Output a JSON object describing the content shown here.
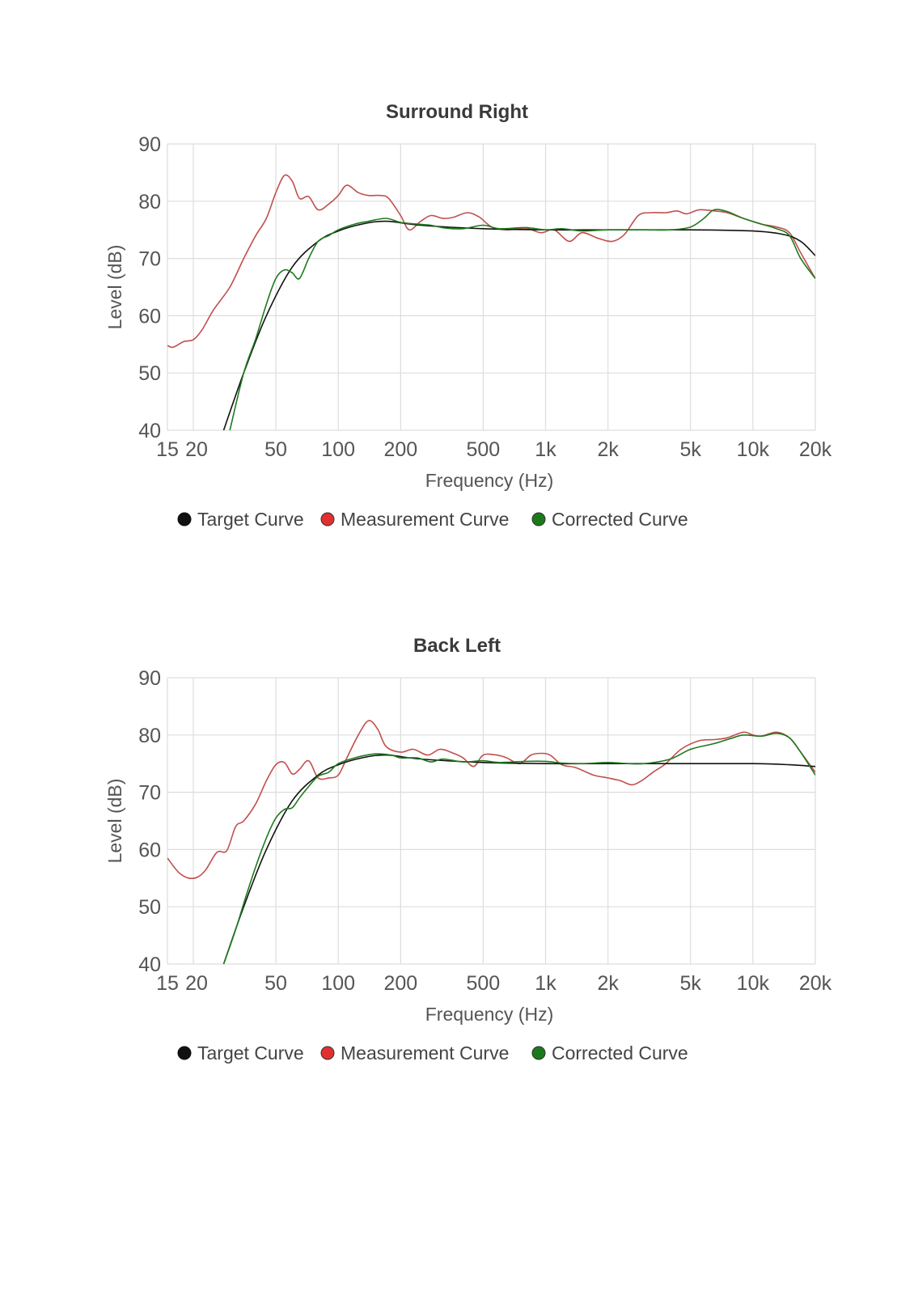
{
  "colors": {
    "target": "#111111",
    "measurement": "#e03030",
    "measurement_line": "#c0504d",
    "corrected": "#1a7a1a",
    "corrected_line": "#1e7a1e",
    "grid": "#dddddd"
  },
  "legend": [
    {
      "key": "target",
      "label": "Target Curve"
    },
    {
      "key": "measurement",
      "label": "Measurement Curve"
    },
    {
      "key": "corrected",
      "label": "Corrected Curve"
    }
  ],
  "chart_data": [
    {
      "type": "line",
      "title": "Surround Right",
      "xlabel": "Frequency (Hz)",
      "ylabel": "Level (dB)",
      "xscale": "log",
      "xlim": [
        15,
        20000
      ],
      "ylim": [
        40,
        90
      ],
      "grid": true,
      "legend_position": "bottom",
      "yticks": [
        {
          "v": 40,
          "label": "40"
        },
        {
          "v": 50,
          "label": "50"
        },
        {
          "v": 60,
          "label": "60"
        },
        {
          "v": 70,
          "label": "70"
        },
        {
          "v": 80,
          "label": "80"
        },
        {
          "v": 90,
          "label": "90"
        }
      ],
      "xticks": [
        {
          "v": 15,
          "label": "15"
        },
        {
          "v": 20,
          "label": "20"
        },
        {
          "v": 50,
          "label": "50"
        },
        {
          "v": 100,
          "label": "100"
        },
        {
          "v": 200,
          "label": "200"
        },
        {
          "v": 500,
          "label": "500"
        },
        {
          "v": 1000,
          "label": "1k"
        },
        {
          "v": 2000,
          "label": "2k"
        },
        {
          "v": 5000,
          "label": "5k"
        },
        {
          "v": 10000,
          "label": "10k"
        },
        {
          "v": 20000,
          "label": "20k"
        }
      ],
      "series": [
        {
          "name": "Target Curve",
          "key": "target",
          "points": [
            [
              28,
              40
            ],
            [
              35,
              50
            ],
            [
              45,
              60
            ],
            [
              60,
              68.5
            ],
            [
              80,
              73
            ],
            [
              100,
              74.8
            ],
            [
              130,
              76
            ],
            [
              170,
              76.5
            ],
            [
              250,
              75.8
            ],
            [
              500,
              75.2
            ],
            [
              1000,
              75
            ],
            [
              2000,
              75
            ],
            [
              5000,
              75
            ],
            [
              10000,
              74.8
            ],
            [
              14000,
              74.2
            ],
            [
              17000,
              73
            ],
            [
              20000,
              70.5
            ]
          ]
        },
        {
          "name": "Measurement Curve",
          "key": "measurement",
          "points": [
            [
              15,
              54.8
            ],
            [
              16,
              54.5
            ],
            [
              18,
              55.5
            ],
            [
              20,
              55.8
            ],
            [
              22,
              57.5
            ],
            [
              25,
              61
            ],
            [
              30,
              65
            ],
            [
              35,
              70
            ],
            [
              40,
              74
            ],
            [
              45,
              77
            ],
            [
              50,
              81.5
            ],
            [
              55,
              84.5
            ],
            [
              60,
              83.5
            ],
            [
              65,
              80.5
            ],
            [
              72,
              80.8
            ],
            [
              80,
              78.5
            ],
            [
              90,
              79.5
            ],
            [
              100,
              81
            ],
            [
              110,
              82.8
            ],
            [
              125,
              81.5
            ],
            [
              140,
              81
            ],
            [
              160,
              81
            ],
            [
              175,
              80.5
            ],
            [
              200,
              77.5
            ],
            [
              220,
              75
            ],
            [
              250,
              76.5
            ],
            [
              280,
              77.5
            ],
            [
              320,
              77
            ],
            [
              360,
              77.2
            ],
            [
              420,
              78
            ],
            [
              480,
              77.2
            ],
            [
              550,
              75.5
            ],
            [
              650,
              75
            ],
            [
              800,
              75.3
            ],
            [
              950,
              74.5
            ],
            [
              1100,
              75
            ],
            [
              1300,
              73
            ],
            [
              1500,
              74.5
            ],
            [
              1800,
              73.5
            ],
            [
              2100,
              73
            ],
            [
              2400,
              74.2
            ],
            [
              2800,
              77.5
            ],
            [
              3200,
              78
            ],
            [
              3800,
              78
            ],
            [
              4300,
              78.3
            ],
            [
              4800,
              77.8
            ],
            [
              5500,
              78.5
            ],
            [
              6500,
              78.3
            ],
            [
              7500,
              78
            ],
            [
              9000,
              77
            ],
            [
              11000,
              76
            ],
            [
              13000,
              75.5
            ],
            [
              15000,
              74.5
            ],
            [
              17000,
              71
            ],
            [
              20000,
              66.5
            ]
          ]
        },
        {
          "name": "Corrected Curve",
          "key": "corrected",
          "points": [
            [
              30,
              40
            ],
            [
              35,
              50
            ],
            [
              40,
              56
            ],
            [
              45,
              62
            ],
            [
              50,
              66.5
            ],
            [
              55,
              68
            ],
            [
              60,
              67.5
            ],
            [
              65,
              66.5
            ],
            [
              72,
              70
            ],
            [
              80,
              73
            ],
            [
              90,
              74
            ],
            [
              100,
              75
            ],
            [
              120,
              76
            ],
            [
              140,
              76.5
            ],
            [
              170,
              77
            ],
            [
              200,
              76.3
            ],
            [
              240,
              76
            ],
            [
              280,
              75.8
            ],
            [
              330,
              75.3
            ],
            [
              400,
              75.2
            ],
            [
              500,
              75.8
            ],
            [
              600,
              75.2
            ],
            [
              800,
              75.4
            ],
            [
              1000,
              75
            ],
            [
              1200,
              75.2
            ],
            [
              1500,
              74.8
            ],
            [
              2000,
              75
            ],
            [
              3000,
              75
            ],
            [
              4000,
              75
            ],
            [
              5000,
              75.5
            ],
            [
              5800,
              77
            ],
            [
              6500,
              78.5
            ],
            [
              7500,
              78.2
            ],
            [
              9000,
              77
            ],
            [
              11000,
              76
            ],
            [
              13000,
              75.2
            ],
            [
              15000,
              74
            ],
            [
              17000,
              70
            ],
            [
              20000,
              66.5
            ]
          ]
        }
      ]
    },
    {
      "type": "line",
      "title": "Back Left",
      "xlabel": "Frequency (Hz)",
      "ylabel": "Level (dB)",
      "xscale": "log",
      "xlim": [
        15,
        20000
      ],
      "ylim": [
        40,
        90
      ],
      "grid": true,
      "legend_position": "bottom",
      "yticks": [
        {
          "v": 40,
          "label": "40"
        },
        {
          "v": 50,
          "label": "50"
        },
        {
          "v": 60,
          "label": "60"
        },
        {
          "v": 70,
          "label": "70"
        },
        {
          "v": 80,
          "label": "80"
        },
        {
          "v": 90,
          "label": "90"
        }
      ],
      "xticks": [
        {
          "v": 15,
          "label": "15"
        },
        {
          "v": 20,
          "label": "20"
        },
        {
          "v": 50,
          "label": "50"
        },
        {
          "v": 100,
          "label": "100"
        },
        {
          "v": 200,
          "label": "200"
        },
        {
          "v": 500,
          "label": "500"
        },
        {
          "v": 1000,
          "label": "1k"
        },
        {
          "v": 2000,
          "label": "2k"
        },
        {
          "v": 5000,
          "label": "5k"
        },
        {
          "v": 10000,
          "label": "10k"
        },
        {
          "v": 20000,
          "label": "20k"
        }
      ],
      "series": [
        {
          "name": "Target Curve",
          "key": "target",
          "points": [
            [
              28,
              40
            ],
            [
              35,
              50
            ],
            [
              45,
              60
            ],
            [
              60,
              68.5
            ],
            [
              80,
              73
            ],
            [
              100,
              74.8
            ],
            [
              130,
              76
            ],
            [
              170,
              76.5
            ],
            [
              250,
              75.8
            ],
            [
              500,
              75.2
            ],
            [
              1000,
              75
            ],
            [
              2000,
              75
            ],
            [
              5000,
              75
            ],
            [
              10000,
              75
            ],
            [
              15000,
              74.8
            ],
            [
              20000,
              74.5
            ]
          ]
        },
        {
          "name": "Measurement Curve",
          "key": "measurement",
          "points": [
            [
              15,
              58.5
            ],
            [
              17,
              56
            ],
            [
              19,
              55
            ],
            [
              21,
              55.2
            ],
            [
              23,
              56.5
            ],
            [
              26,
              59.5
            ],
            [
              29,
              59.8
            ],
            [
              32,
              64
            ],
            [
              35,
              65
            ],
            [
              40,
              68
            ],
            [
              45,
              72
            ],
            [
              50,
              74.8
            ],
            [
              55,
              75.2
            ],
            [
              60,
              73.2
            ],
            [
              65,
              74
            ],
            [
              72,
              75.5
            ],
            [
              80,
              72.5
            ],
            [
              90,
              72.5
            ],
            [
              100,
              73
            ],
            [
              110,
              76
            ],
            [
              125,
              80
            ],
            [
              140,
              82.5
            ],
            [
              155,
              81
            ],
            [
              170,
              78
            ],
            [
              200,
              77
            ],
            [
              230,
              77.5
            ],
            [
              270,
              76.5
            ],
            [
              310,
              77.5
            ],
            [
              360,
              76.8
            ],
            [
              400,
              76
            ],
            [
              450,
              74.5
            ],
            [
              500,
              76.5
            ],
            [
              580,
              76.5
            ],
            [
              650,
              76
            ],
            [
              750,
              75
            ],
            [
              850,
              76.5
            ],
            [
              950,
              76.8
            ],
            [
              1050,
              76.5
            ],
            [
              1200,
              74.8
            ],
            [
              1400,
              74.3
            ],
            [
              1700,
              73
            ],
            [
              2000,
              72.5
            ],
            [
              2300,
              72
            ],
            [
              2600,
              71.3
            ],
            [
              2900,
              72
            ],
            [
              3300,
              73.5
            ],
            [
              3800,
              75
            ],
            [
              4500,
              77.5
            ],
            [
              5500,
              79
            ],
            [
              6500,
              79.2
            ],
            [
              7500,
              79.5
            ],
            [
              9000,
              80.5
            ],
            [
              10000,
              80
            ],
            [
              11000,
              79.8
            ],
            [
              13000,
              80.5
            ],
            [
              15000,
              79.5
            ],
            [
              17000,
              77
            ],
            [
              20000,
              73.5
            ]
          ]
        },
        {
          "name": "Corrected Curve",
          "key": "corrected",
          "points": [
            [
              28,
              40
            ],
            [
              32,
              46
            ],
            [
              36,
              52
            ],
            [
              40,
              57
            ],
            [
              45,
              62
            ],
            [
              50,
              65.5
            ],
            [
              55,
              67
            ],
            [
              60,
              67.3
            ],
            [
              65,
              69
            ],
            [
              72,
              71
            ],
            [
              80,
              72.8
            ],
            [
              90,
              73.5
            ],
            [
              100,
              75
            ],
            [
              120,
              76
            ],
            [
              150,
              76.7
            ],
            [
              180,
              76.5
            ],
            [
              200,
              76
            ],
            [
              240,
              76
            ],
            [
              280,
              75.3
            ],
            [
              320,
              75.8
            ],
            [
              400,
              75.3
            ],
            [
              500,
              75.5
            ],
            [
              600,
              75.2
            ],
            [
              800,
              75.4
            ],
            [
              1000,
              75.4
            ],
            [
              1200,
              75.1
            ],
            [
              1500,
              75
            ],
            [
              2000,
              75.2
            ],
            [
              2500,
              75
            ],
            [
              3000,
              75
            ],
            [
              4000,
              75.8
            ],
            [
              5000,
              77.5
            ],
            [
              6500,
              78.5
            ],
            [
              8000,
              79.5
            ],
            [
              9000,
              80
            ],
            [
              11000,
              79.8
            ],
            [
              13000,
              80.3
            ],
            [
              15000,
              79.5
            ],
            [
              17000,
              77
            ],
            [
              20000,
              73
            ]
          ]
        }
      ]
    }
  ]
}
